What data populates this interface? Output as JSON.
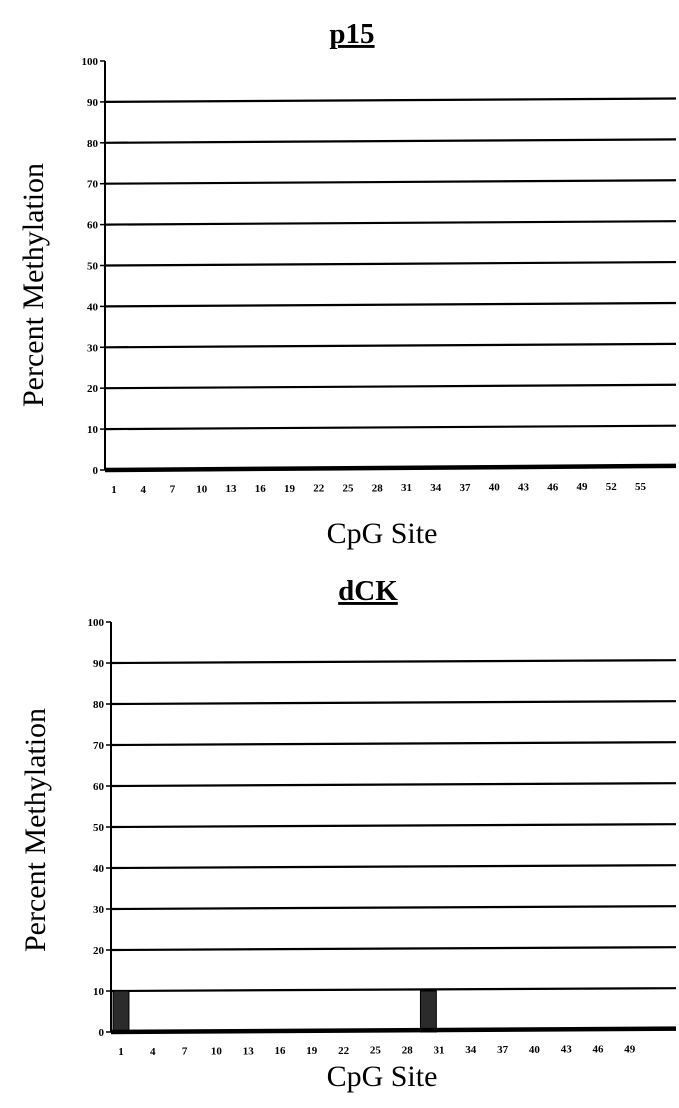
{
  "chart_data": [
    {
      "type": "bar",
      "title": "p15",
      "xlabel": "CpG Site",
      "ylabel": "Percent Methylation",
      "ylim": [
        0,
        100
      ],
      "yticks": [
        0,
        10,
        20,
        30,
        40,
        50,
        60,
        70,
        80,
        90,
        100
      ],
      "grid": true,
      "categories": [
        "1",
        "4",
        "7",
        "10",
        "13",
        "16",
        "19",
        "22",
        "25",
        "28",
        "31",
        "34",
        "37",
        "40",
        "43",
        "46",
        "49",
        "52",
        "55"
      ],
      "bars": []
    },
    {
      "type": "bar",
      "title": "dCK",
      "xlabel": "CpG Site",
      "ylabel": "Percent Methylation",
      "ylim": [
        0,
        100
      ],
      "yticks": [
        0,
        10,
        20,
        30,
        40,
        50,
        60,
        70,
        80,
        90,
        100
      ],
      "grid": true,
      "categories": [
        "1",
        "4",
        "7",
        "10",
        "13",
        "16",
        "19",
        "22",
        "25",
        "28",
        "31",
        "34",
        "37",
        "40",
        "43",
        "46",
        "49"
      ],
      "bars": [
        {
          "site": 1,
          "value": 10
        },
        {
          "site": 30,
          "value": 10
        }
      ]
    }
  ]
}
